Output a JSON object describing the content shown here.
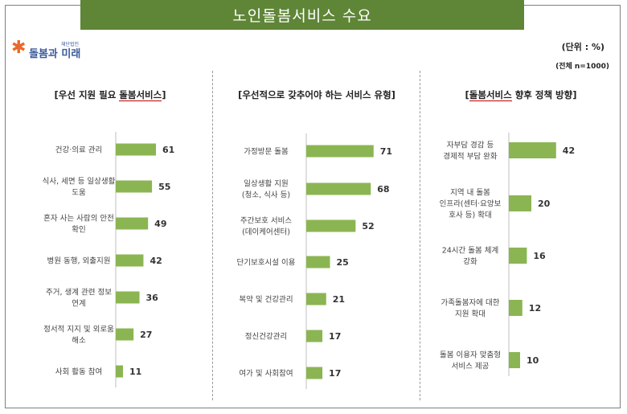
{
  "title": "노인돌봄서비스 수요",
  "logo": {
    "text": "돌봄과 미래",
    "small_text": "재단법인"
  },
  "unit_label": "(단위 : %)",
  "total_label": "(전체 n=1000)",
  "colors": {
    "bar": "#8bb552",
    "title_bg": "#5f8537"
  },
  "chart_data": [
    {
      "type": "bar",
      "orientation": "horizontal",
      "title_parts": [
        "[우선 지원 필요 ",
        "돌봄서비스",
        "]"
      ],
      "categories": [
        [
          "건강·의료 관리"
        ],
        [
          "식사, 세면 등 일상생활",
          "도움"
        ],
        [
          "혼자 사는 사람의 안전",
          "확인"
        ],
        [
          "병원 동행, 외출지원"
        ],
        [
          "주거, 생계 관련 정보",
          "연계"
        ],
        [
          "정서적 지지 및 외로움",
          "해소"
        ],
        [
          "사회 활동 참여"
        ]
      ],
      "values": [
        61,
        55,
        49,
        42,
        36,
        27,
        11
      ]
    },
    {
      "type": "bar",
      "orientation": "horizontal",
      "title_parts": [
        "[우선적으로 갖추어야 하는 서비스 유형]"
      ],
      "categories": [
        [
          "가정방문 돌봄"
        ],
        [
          "일상생활 지원",
          "(청소, 식사 등)"
        ],
        [
          "주간보호 서비스",
          "(데이케어센터)"
        ],
        [
          "단기보호시설 이용"
        ],
        [
          "복약 및 건강관리"
        ],
        [
          "정신건강관리"
        ],
        [
          "여가 및 사회참여"
        ]
      ],
      "values": [
        71,
        68,
        52,
        25,
        21,
        17,
        17
      ]
    },
    {
      "type": "bar",
      "orientation": "horizontal",
      "title_parts": [
        "[",
        "돌봄서비스",
        " 향후 정책 방향]"
      ],
      "categories": [
        [
          "자부담 경감 등",
          "경제적 부담 완화"
        ],
        [
          "지역 내 돌봄",
          "인프라(센터·요양보",
          "호사 등) 확대"
        ],
        [
          "24시간 돌봄 체계",
          "강화"
        ],
        [
          "가족돌봄자에 대한",
          "지원 확대"
        ],
        [
          "돌봄 이용자 맞춤형",
          "서비스 제공"
        ]
      ],
      "values": [
        42,
        20,
        16,
        12,
        10
      ]
    }
  ]
}
